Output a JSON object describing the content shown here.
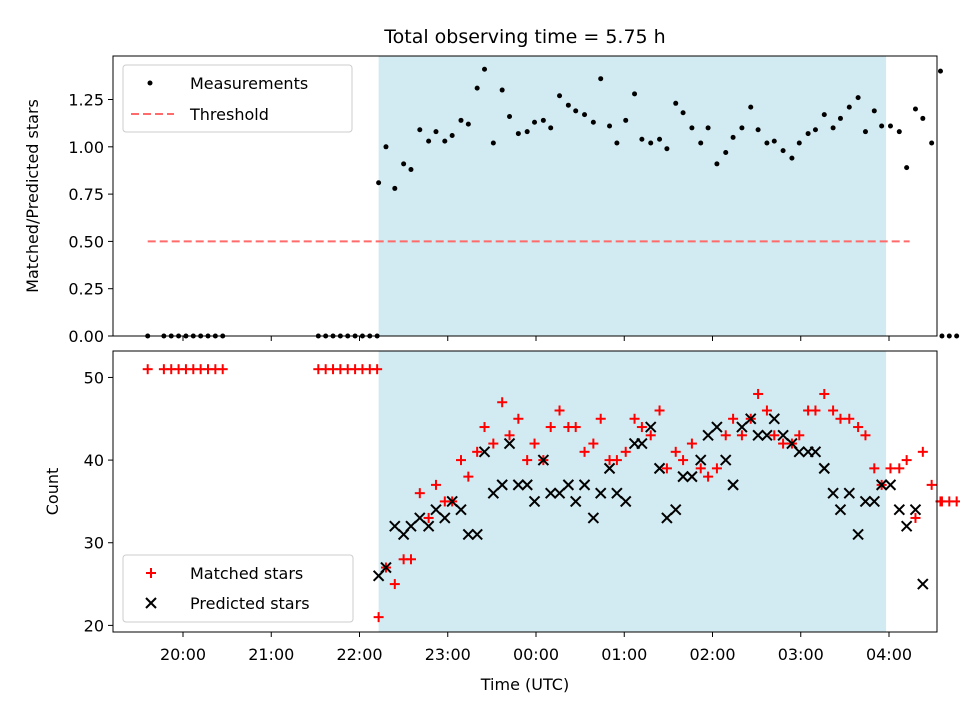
{
  "chart_data": {
    "type": "scatter",
    "title": "Total observing time = 5.75 h",
    "xlabel": "Time (UTC)",
    "x_ticks": [
      "20:00",
      "21:00",
      "22:00",
      "23:00",
      "00:00",
      "01:00",
      "02:00",
      "03:00",
      "04:00"
    ],
    "observing_window": {
      "start": "22:13",
      "end": "03:58"
    },
    "shade_color": "#add8e6",
    "top": {
      "ylabel": "Matched/Predicted stars",
      "ylim": [
        0,
        1.48
      ],
      "y_ticks": [
        "0.00",
        "0.25",
        "0.50",
        "0.75",
        "1.00",
        "1.25"
      ],
      "legend": [
        "Measurements",
        "Threshold"
      ],
      "threshold": {
        "value": 0.5,
        "x_start": "19:36",
        "x_end": "04:14",
        "color": "#ff6b6b"
      },
      "measurements": [
        [
          "19:36",
          0
        ],
        [
          "19:47",
          0
        ],
        [
          "19:52",
          0
        ],
        [
          "19:57",
          0
        ],
        [
          "20:02",
          0
        ],
        [
          "20:07",
          0
        ],
        [
          "20:12",
          0
        ],
        [
          "20:17",
          0
        ],
        [
          "20:22",
          0
        ],
        [
          "20:27",
          0
        ],
        [
          "21:32",
          0
        ],
        [
          "21:37",
          0
        ],
        [
          "21:42",
          0
        ],
        [
          "21:47",
          0
        ],
        [
          "21:52",
          0
        ],
        [
          "21:57",
          0
        ],
        [
          "22:02",
          0
        ],
        [
          "22:07",
          0
        ],
        [
          "22:12",
          0
        ],
        [
          "22:13",
          0.81
        ],
        [
          "22:18",
          1.0
        ],
        [
          "22:24",
          0.78
        ],
        [
          "22:30",
          0.91
        ],
        [
          "22:35",
          0.88
        ],
        [
          "22:41",
          1.09
        ],
        [
          "22:47",
          1.03
        ],
        [
          "22:52",
          1.08
        ],
        [
          "22:58",
          1.03
        ],
        [
          "23:03",
          1.06
        ],
        [
          "23:09",
          1.14
        ],
        [
          "23:14",
          1.12
        ],
        [
          "23:20",
          1.31
        ],
        [
          "23:25",
          1.41
        ],
        [
          "23:31",
          1.02
        ],
        [
          "23:37",
          1.3
        ],
        [
          "23:42",
          1.16
        ],
        [
          "23:48",
          1.07
        ],
        [
          "23:54",
          1.08
        ],
        [
          "23:59",
          1.13
        ],
        [
          "00:05",
          1.14
        ],
        [
          "00:10",
          1.1
        ],
        [
          "00:16",
          1.27
        ],
        [
          "00:22",
          1.22
        ],
        [
          "00:27",
          1.19
        ],
        [
          "00:33",
          1.17
        ],
        [
          "00:39",
          1.13
        ],
        [
          "00:44",
          1.36
        ],
        [
          "00:50",
          1.11
        ],
        [
          "00:55",
          1.02
        ],
        [
          "01:01",
          1.14
        ],
        [
          "01:07",
          1.28
        ],
        [
          "01:12",
          1.04
        ],
        [
          "01:18",
          1.02
        ],
        [
          "01:24",
          1.04
        ],
        [
          "01:29",
          0.99
        ],
        [
          "01:35",
          1.23
        ],
        [
          "01:40",
          1.18
        ],
        [
          "01:46",
          1.1
        ],
        [
          "01:52",
          1.02
        ],
        [
          "01:57",
          1.1
        ],
        [
          "02:03",
          0.91
        ],
        [
          "02:09",
          0.97
        ],
        [
          "02:14",
          1.05
        ],
        [
          "02:20",
          1.1
        ],
        [
          "02:26",
          1.21
        ],
        [
          "02:31",
          1.09
        ],
        [
          "02:37",
          1.02
        ],
        [
          "02:42",
          1.03
        ],
        [
          "02:48",
          0.98
        ],
        [
          "02:54",
          0.94
        ],
        [
          "02:59",
          1.02
        ],
        [
          "03:05",
          1.07
        ],
        [
          "03:10",
          1.09
        ],
        [
          "03:16",
          1.17
        ],
        [
          "03:22",
          1.1
        ],
        [
          "03:27",
          1.15
        ],
        [
          "03:33",
          1.21
        ],
        [
          "03:39",
          1.26
        ],
        [
          "03:44",
          1.08
        ],
        [
          "03:50",
          1.19
        ],
        [
          "03:55",
          1.11
        ],
        [
          "04:01",
          1.11
        ],
        [
          "04:07",
          1.08
        ],
        [
          "04:12",
          0.89
        ],
        [
          "04:18",
          1.2
        ],
        [
          "04:23",
          1.15
        ],
        [
          "04:29",
          1.02
        ],
        [
          "04:35",
          1.4
        ],
        [
          "04:36",
          0
        ],
        [
          "04:41",
          0
        ],
        [
          "04:46",
          0
        ]
      ]
    },
    "bottom": {
      "ylabel": "Count",
      "ylim": [
        19.2,
        53.2
      ],
      "y_ticks": [
        "20",
        "30",
        "40",
        "50"
      ],
      "legend": [
        "Matched stars",
        "Predicted stars"
      ],
      "matched": [
        [
          "19:36",
          51
        ],
        [
          "19:47",
          51
        ],
        [
          "19:52",
          51
        ],
        [
          "19:57",
          51
        ],
        [
          "20:02",
          51
        ],
        [
          "20:07",
          51
        ],
        [
          "20:12",
          51
        ],
        [
          "20:17",
          51
        ],
        [
          "20:22",
          51
        ],
        [
          "20:27",
          51
        ],
        [
          "21:32",
          51
        ],
        [
          "21:37",
          51
        ],
        [
          "21:42",
          51
        ],
        [
          "21:47",
          51
        ],
        [
          "21:52",
          51
        ],
        [
          "21:57",
          51
        ],
        [
          "22:02",
          51
        ],
        [
          "22:07",
          51
        ],
        [
          "22:12",
          51
        ],
        [
          "22:13",
          21
        ],
        [
          "22:18",
          27
        ],
        [
          "22:24",
          25
        ],
        [
          "22:30",
          28
        ],
        [
          "22:35",
          28
        ],
        [
          "22:41",
          36
        ],
        [
          "22:47",
          33
        ],
        [
          "22:52",
          37
        ],
        [
          "22:58",
          35
        ],
        [
          "23:03",
          35
        ],
        [
          "23:09",
          40
        ],
        [
          "23:14",
          38
        ],
        [
          "23:20",
          41
        ],
        [
          "23:25",
          44
        ],
        [
          "23:31",
          42
        ],
        [
          "23:37",
          47
        ],
        [
          "23:42",
          43
        ],
        [
          "23:48",
          45
        ],
        [
          "23:54",
          40
        ],
        [
          "23:59",
          42
        ],
        [
          "00:05",
          40
        ],
        [
          "00:10",
          44
        ],
        [
          "00:16",
          46
        ],
        [
          "00:22",
          44
        ],
        [
          "00:27",
          44
        ],
        [
          "00:33",
          41
        ],
        [
          "00:39",
          42
        ],
        [
          "00:44",
          45
        ],
        [
          "00:50",
          40
        ],
        [
          "00:55",
          40
        ],
        [
          "01:01",
          41
        ],
        [
          "01:07",
          45
        ],
        [
          "01:12",
          44
        ],
        [
          "01:18",
          43
        ],
        [
          "01:24",
          46
        ],
        [
          "01:29",
          39
        ],
        [
          "01:35",
          41
        ],
        [
          "01:40",
          40
        ],
        [
          "01:46",
          42
        ],
        [
          "01:52",
          39
        ],
        [
          "01:57",
          38
        ],
        [
          "02:03",
          39
        ],
        [
          "02:09",
          43
        ],
        [
          "02:14",
          45
        ],
        [
          "02:20",
          43
        ],
        [
          "02:26",
          45
        ],
        [
          "02:31",
          48
        ],
        [
          "02:37",
          46
        ],
        [
          "02:42",
          43
        ],
        [
          "02:48",
          42
        ],
        [
          "02:54",
          42
        ],
        [
          "02:59",
          43
        ],
        [
          "03:05",
          46
        ],
        [
          "03:10",
          46
        ],
        [
          "03:16",
          48
        ],
        [
          "03:22",
          46
        ],
        [
          "03:27",
          45
        ],
        [
          "03:33",
          45
        ],
        [
          "03:39",
          44
        ],
        [
          "03:44",
          43
        ],
        [
          "03:50",
          39
        ],
        [
          "03:55",
          37
        ],
        [
          "04:01",
          39
        ],
        [
          "04:07",
          39
        ],
        [
          "04:12",
          40
        ],
        [
          "04:18",
          33
        ],
        [
          "04:23",
          41
        ],
        [
          "04:29",
          37
        ],
        [
          "04:35",
          35
        ],
        [
          "04:36",
          35
        ],
        [
          "04:41",
          35
        ],
        [
          "04:46",
          35
        ]
      ],
      "predicted": [
        [
          "22:13",
          26
        ],
        [
          "22:18",
          27
        ],
        [
          "22:24",
          32
        ],
        [
          "22:30",
          31
        ],
        [
          "22:35",
          32
        ],
        [
          "22:41",
          33
        ],
        [
          "22:47",
          32
        ],
        [
          "22:52",
          34
        ],
        [
          "22:58",
          33
        ],
        [
          "23:03",
          35
        ],
        [
          "23:09",
          34
        ],
        [
          "23:14",
          31
        ],
        [
          "23:20",
          31
        ],
        [
          "23:25",
          41
        ],
        [
          "23:31",
          36
        ],
        [
          "23:37",
          37
        ],
        [
          "23:42",
          42
        ],
        [
          "23:48",
          37
        ],
        [
          "23:54",
          37
        ],
        [
          "23:59",
          35
        ],
        [
          "00:05",
          40
        ],
        [
          "00:10",
          36
        ],
        [
          "00:16",
          36
        ],
        [
          "00:22",
          37
        ],
        [
          "00:27",
          35
        ],
        [
          "00:33",
          37
        ],
        [
          "00:39",
          33
        ],
        [
          "00:44",
          36
        ],
        [
          "00:50",
          39
        ],
        [
          "00:55",
          36
        ],
        [
          "01:01",
          35
        ],
        [
          "01:07",
          42
        ],
        [
          "01:12",
          42
        ],
        [
          "01:18",
          44
        ],
        [
          "01:24",
          39
        ],
        [
          "01:29",
          33
        ],
        [
          "01:35",
          34
        ],
        [
          "01:40",
          38
        ],
        [
          "01:46",
          38
        ],
        [
          "01:52",
          40
        ],
        [
          "01:57",
          43
        ],
        [
          "02:03",
          44
        ],
        [
          "02:09",
          40
        ],
        [
          "02:14",
          37
        ],
        [
          "02:20",
          44
        ],
        [
          "02:26",
          45
        ],
        [
          "02:31",
          43
        ],
        [
          "02:37",
          43
        ],
        [
          "02:42",
          45
        ],
        [
          "02:48",
          43
        ],
        [
          "02:54",
          42
        ],
        [
          "02:59",
          41
        ],
        [
          "03:05",
          41
        ],
        [
          "03:10",
          41
        ],
        [
          "03:16",
          39
        ],
        [
          "03:22",
          36
        ],
        [
          "03:27",
          34
        ],
        [
          "03:33",
          36
        ],
        [
          "03:39",
          31
        ],
        [
          "03:44",
          35
        ],
        [
          "03:50",
          35
        ],
        [
          "03:55",
          37
        ],
        [
          "04:01",
          37
        ],
        [
          "04:07",
          34
        ],
        [
          "04:12",
          32
        ],
        [
          "04:18",
          34
        ],
        [
          "04:23",
          25
        ]
      ]
    }
  }
}
